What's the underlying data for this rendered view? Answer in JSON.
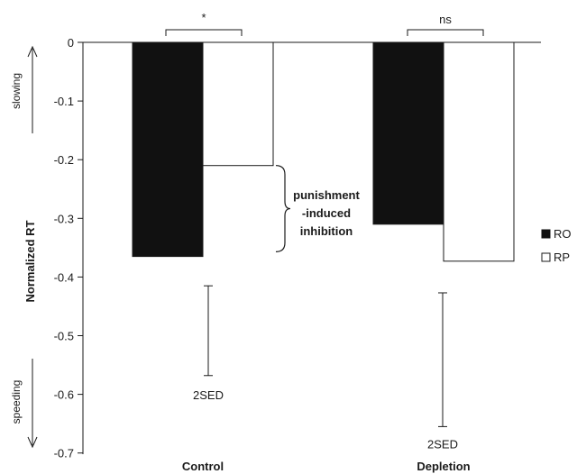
{
  "chart_data": {
    "type": "bar",
    "categories": [
      "Control",
      "Depletion"
    ],
    "series": [
      {
        "name": "RO",
        "values": [
          -0.365,
          -0.31
        ],
        "fill": "#111111"
      },
      {
        "name": "RP",
        "values": [
          -0.21,
          -0.373
        ],
        "fill": "#ffffff"
      }
    ],
    "ylabel": "Normalized RT",
    "ylim": [
      -0.7,
      0
    ],
    "yticks": [
      0,
      -0.1,
      -0.2,
      -0.3,
      -0.4,
      -0.5,
      -0.6,
      -0.7
    ],
    "ytick_labels": [
      "0",
      "-0.1",
      "-0.2",
      "-0.3",
      "-0.4",
      "-0.5",
      "-0.6",
      "-0.7"
    ],
    "grid": false,
    "legend_position": "right",
    "direction_labels": {
      "up": "slowing",
      "down": "speeding"
    },
    "significance": [
      {
        "category": "Control",
        "label": "*"
      },
      {
        "category": "Depletion",
        "label": "ns"
      }
    ],
    "error_bars": [
      {
        "category": "Control",
        "label": "2SED",
        "low": -0.568,
        "high": -0.415
      },
      {
        "category": "Depletion",
        "label": "2SED",
        "low": -0.655,
        "high": -0.427
      }
    ],
    "annotation": {
      "lines": [
        "punishment",
        "-induced",
        "inhibition"
      ],
      "from": -0.21,
      "to": -0.357
    }
  }
}
